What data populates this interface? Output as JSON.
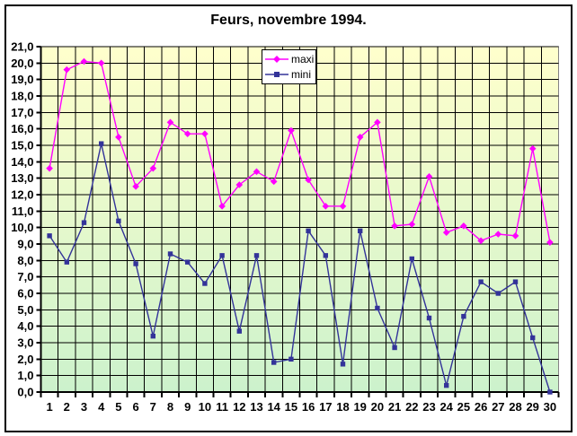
{
  "chart": {
    "title": "Feurs, novembre 1994.",
    "legend": {
      "position": "top-center",
      "items": [
        {
          "label": "maxi",
          "color": "#ff00ff",
          "marker": "diamond"
        },
        {
          "label": "mini",
          "color": "#333399",
          "marker": "square"
        }
      ]
    },
    "colors": {
      "grid": "#000000",
      "axis": "#000000",
      "plot_border": "#848284",
      "plot_bg_top": "#ffffcc",
      "plot_bg_bottom": "#ccf2cc",
      "text": "#000000",
      "chart_bg": "#ffffff"
    }
  },
  "chart_data": {
    "type": "line",
    "title": "Feurs, novembre 1994.",
    "categories": [
      "1",
      "2",
      "3",
      "4",
      "5",
      "6",
      "7",
      "8",
      "9",
      "10",
      "11",
      "12",
      "13",
      "14",
      "15",
      "16",
      "17",
      "18",
      "19",
      "20",
      "21",
      "22",
      "23",
      "24",
      "25",
      "26",
      "27",
      "28",
      "29",
      "30"
    ],
    "series": [
      {
        "name": "maxi",
        "color": "#ff00ff",
        "marker": "diamond",
        "values": [
          13.6,
          19.6,
          20.1,
          20.0,
          15.5,
          12.5,
          13.6,
          16.4,
          15.7,
          15.7,
          11.3,
          12.6,
          13.4,
          12.8,
          15.9,
          12.9,
          11.3,
          11.3,
          15.5,
          16.4,
          10.1,
          10.2,
          13.1,
          9.7,
          10.1,
          9.2,
          9.6,
          9.5,
          14.8,
          9.1
        ]
      },
      {
        "name": "mini",
        "color": "#333399",
        "marker": "square",
        "values": [
          9.5,
          7.9,
          10.3,
          15.1,
          10.4,
          7.8,
          3.4,
          8.4,
          7.9,
          6.6,
          8.3,
          3.7,
          8.3,
          1.8,
          2.0,
          9.8,
          8.3,
          1.7,
          9.8,
          5.1,
          2.7,
          8.1,
          4.5,
          0.4,
          4.6,
          6.7,
          6.0,
          6.7,
          3.3,
          0.0
        ]
      }
    ],
    "xlabel": "",
    "ylabel": "",
    "ylim": [
      0,
      21
    ],
    "y_tick_step": 1.0,
    "y_tick_labels": [
      "21,0",
      "20,0",
      "19,0",
      "18,0",
      "17,0",
      "16,0",
      "15,0",
      "14,0",
      "13,0",
      "12,0",
      "11,0",
      "10,0",
      "9,0",
      "8,0",
      "7,0",
      "6,0",
      "5,0",
      "4,0",
      "3,0",
      "2,0",
      "1,0",
      "0,0"
    ],
    "grid": true,
    "legend_position": "top-center"
  }
}
